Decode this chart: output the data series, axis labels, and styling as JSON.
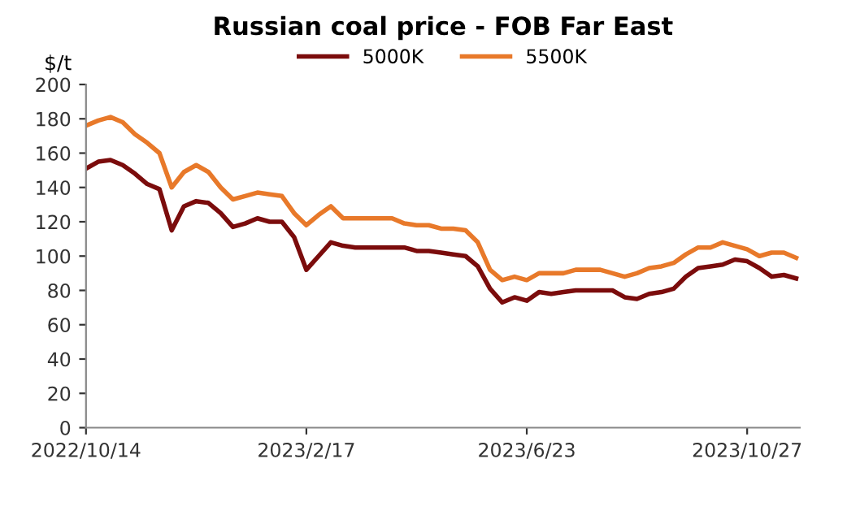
{
  "chart_data": {
    "type": "line",
    "title": "Russian coal price - FOB Far East",
    "ylabel": "$/t",
    "categories": [
      "2022/10/14",
      null,
      null,
      null,
      null,
      null,
      null,
      null,
      null,
      null,
      null,
      null,
      null,
      null,
      null,
      null,
      null,
      null,
      "2023/2/17",
      null,
      null,
      null,
      null,
      null,
      null,
      null,
      null,
      null,
      null,
      null,
      null,
      null,
      null,
      null,
      null,
      null,
      "2023/6/23",
      null,
      null,
      null,
      null,
      null,
      null,
      null,
      null,
      null,
      null,
      null,
      null,
      null,
      null,
      null,
      null,
      null,
      "2023/10/27",
      null,
      null,
      null,
      null
    ],
    "series": [
      {
        "name": "5000K",
        "color": "#7b0c0c",
        "values": [
          151,
          155,
          156,
          153,
          148,
          142,
          139,
          115,
          129,
          132,
          131,
          125,
          117,
          119,
          122,
          120,
          120,
          111,
          92,
          100,
          108,
          106,
          105,
          105,
          105,
          105,
          105,
          103,
          103,
          102,
          101,
          100,
          94,
          81,
          73,
          76,
          74,
          79,
          78,
          79,
          80,
          80,
          80,
          80,
          76,
          75,
          78,
          79,
          81,
          88,
          93,
          94,
          95,
          98,
          97,
          93,
          88,
          89,
          87
        ]
      },
      {
        "name": "5500K",
        "color": "#e8792a",
        "values": [
          176,
          179,
          181,
          178,
          171,
          166,
          160,
          140,
          149,
          153,
          149,
          140,
          133,
          135,
          137,
          136,
          135,
          125,
          118,
          124,
          129,
          122,
          122,
          122,
          122,
          122,
          119,
          118,
          118,
          116,
          116,
          115,
          108,
          92,
          86,
          88,
          86,
          90,
          90,
          90,
          92,
          92,
          92,
          90,
          88,
          90,
          93,
          94,
          96,
          101,
          105,
          105,
          108,
          106,
          104,
          100,
          102,
          102,
          99
        ]
      }
    ],
    "ylim": [
      0,
      200
    ],
    "yticks": [
      0,
      20,
      40,
      60,
      80,
      100,
      120,
      140,
      160,
      180,
      200
    ],
    "grid": false,
    "legend": "top",
    "marker": "none",
    "line_style": "solid"
  }
}
